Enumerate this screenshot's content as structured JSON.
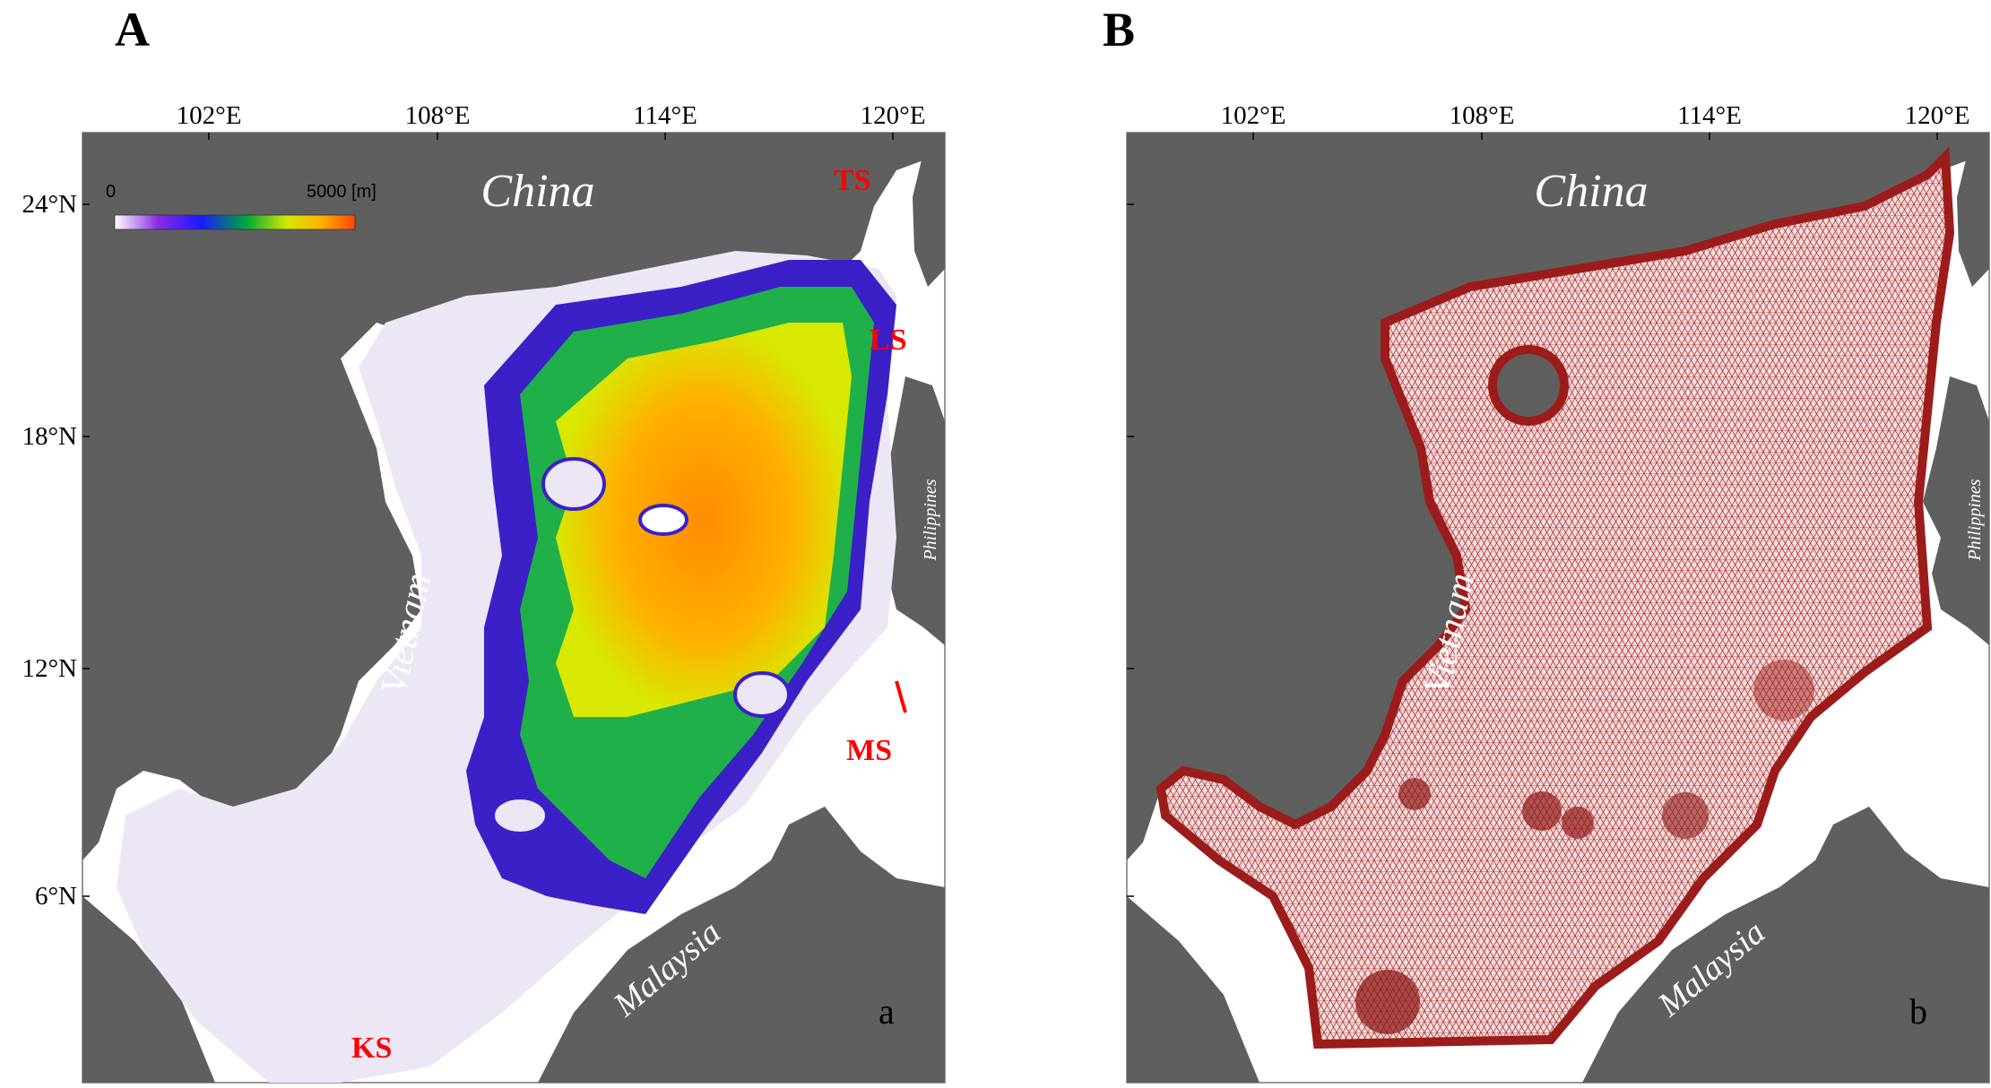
{
  "panel_a": {
    "panel_label": "A",
    "subplot_letter": "a",
    "lon_ticks": [
      "102°E",
      "108°E",
      "114°E",
      "120°E"
    ],
    "lat_ticks": [
      "24°N",
      "18°N",
      "12°N",
      "6°N"
    ],
    "colorbar": {
      "min_label": "0",
      "max_label": "5000 [m]",
      "colors": [
        "#ffffff",
        "#8a2be2",
        "#1a1aff",
        "#00aa3a",
        "#d8e800",
        "#ffb000",
        "#ff4500"
      ]
    },
    "country_labels": {
      "china": "China",
      "vietnam": "Vietnam",
      "malaysia": "Malaysia",
      "philippines": "Philippines"
    },
    "strait_labels": {
      "ts": "TS",
      "ls": "LS",
      "ms": "MS",
      "ks": "KS"
    }
  },
  "panel_b": {
    "panel_label": "B",
    "subplot_letter": "b",
    "lon_ticks": [
      "102°E",
      "108°E",
      "114°E",
      "120°E"
    ],
    "country_labels": {
      "china": "China",
      "vietnam": "Vietnam",
      "malaysia": "Malaysia",
      "philippines": "Philippines"
    }
  },
  "colors": {
    "land": "#5f5f5f",
    "strait_label": "#ff0000",
    "mesh": "#a01818"
  }
}
